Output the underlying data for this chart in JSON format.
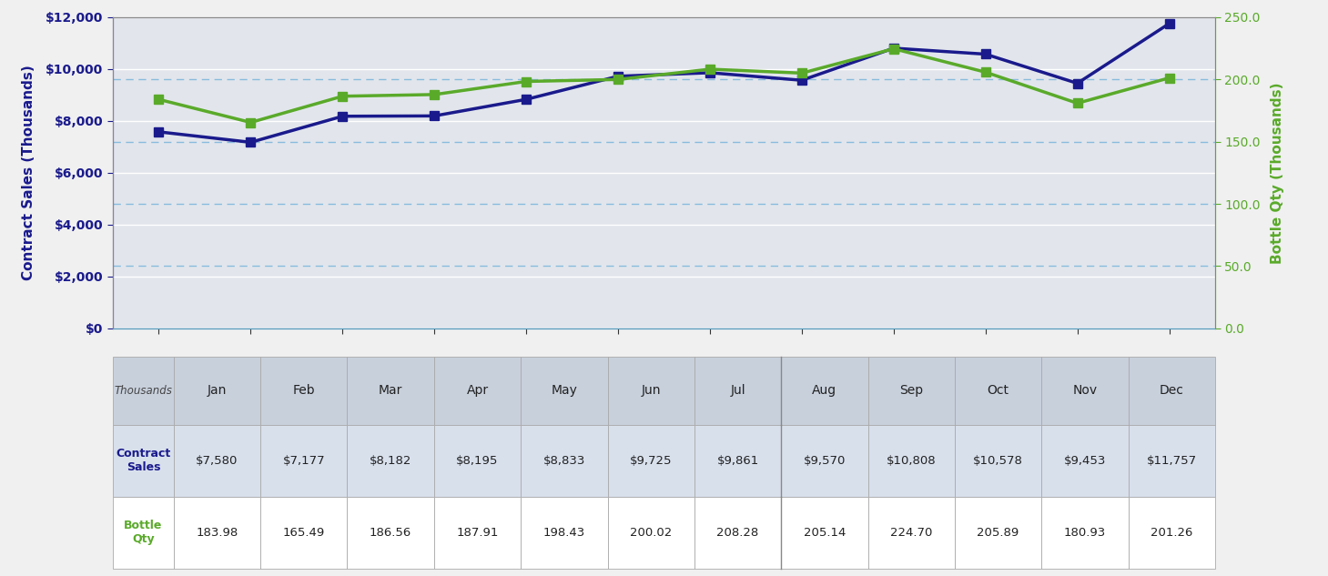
{
  "months": [
    "Jan",
    "Feb",
    "Mar",
    "Apr",
    "May",
    "Jun",
    "Jul",
    "Aug",
    "Sep",
    "Oct",
    "Nov",
    "Dec"
  ],
  "contract_sales": [
    7580,
    7177,
    8182,
    8195,
    8833,
    9725,
    9861,
    9570,
    10808,
    10578,
    9453,
    11757
  ],
  "bottle_qty": [
    183.98,
    165.49,
    186.56,
    187.91,
    198.43,
    200.02,
    208.28,
    205.14,
    224.7,
    205.89,
    180.93,
    201.26
  ],
  "contract_sales_color": "#1a1a8c",
  "bottle_qty_color": "#5aaa2a",
  "left_ylabel": "Contract Sales (Thousands)",
  "right_ylabel": "Bottle Qty (Thousands)",
  "left_ylim": [
    0,
    12000
  ],
  "right_ylim": [
    0,
    250
  ],
  "left_yticks": [
    0,
    2000,
    4000,
    6000,
    8000,
    10000,
    12000
  ],
  "left_yticklabels": [
    "$0",
    "$2,000",
    "$4,000",
    "$6,000",
    "$8,000",
    "$10,000",
    "$12,000"
  ],
  "right_yticks": [
    0.0,
    50.0,
    100.0,
    150.0,
    200.0,
    250.0
  ],
  "right_yticklabels": [
    "0.0",
    "50.0",
    "100.0",
    "150.0",
    "200.0",
    "250.0"
  ],
  "plot_bg_color": "#e2e6ec",
  "fig_bg_color": "#f0f0f0",
  "table_header_bg": "#c8d0dc",
  "table_row1_bg": "#d8e0ec",
  "table_row2_bg": "#ffffff",
  "dashed_line_color": "#88bbdd",
  "solid_grid_color": "#ffffff",
  "left_axis_color": "#1a1a8c",
  "right_axis_color": "#5aaa2a",
  "table_contract_label_color": "#1a1a8c",
  "table_bottle_label_color": "#5aaa2a",
  "left_tick_color": "#333333",
  "right_tick_color": "#5aaa2a"
}
